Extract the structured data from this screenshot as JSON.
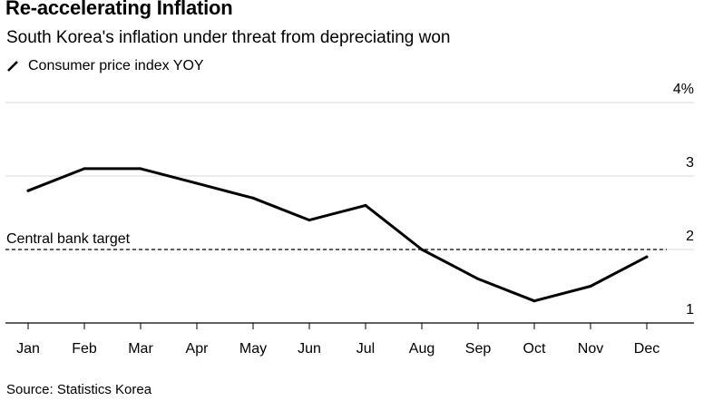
{
  "chart_data": {
    "type": "line",
    "title": "Re-accelerating Inflation",
    "subtitle": "South Korea's inflation under threat from depreciating won",
    "legend": [
      "Consumer price index YOY"
    ],
    "categories": [
      "Jan",
      "Feb",
      "Mar",
      "Apr",
      "May",
      "Jun",
      "Jul",
      "Aug",
      "Sep",
      "Oct",
      "Nov",
      "Dec"
    ],
    "series": [
      {
        "name": "Consumer price index YOY",
        "values": [
          2.8,
          3.1,
          3.1,
          2.9,
          2.7,
          2.4,
          2.6,
          2.0,
          1.6,
          1.3,
          1.5,
          1.9
        ]
      }
    ],
    "y_ticks": [
      "1",
      "2",
      "3",
      "4%"
    ],
    "y_tick_values": [
      1,
      2,
      3,
      4
    ],
    "ylim": [
      1,
      4
    ],
    "reference_line": {
      "label": "Central bank target",
      "value": 2
    },
    "source": "Source: Statistics Korea",
    "line_color": "#000000",
    "grid_color": "#d9d9d9"
  }
}
